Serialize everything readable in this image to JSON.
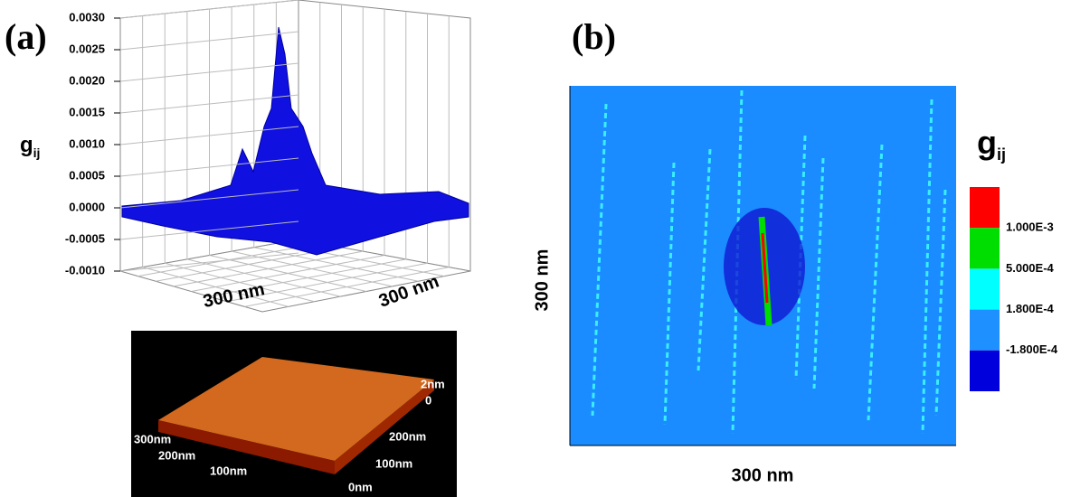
{
  "chart_data": [
    {
      "type": "surface",
      "label": "(a)",
      "zlabel": "g",
      "zlabel_sub": "ij",
      "zlim": [
        -0.001,
        0.003
      ],
      "zticks": [
        {
          "value": -0.001,
          "label": "-0.0010"
        },
        {
          "value": -0.0005,
          "label": "-0.0005"
        },
        {
          "value": 0,
          "label": "0.0000"
        },
        {
          "value": 0.0005,
          "label": "0.0005"
        },
        {
          "value": 0.001,
          "label": "0.0010"
        },
        {
          "value": 0.0015,
          "label": "0.0015"
        },
        {
          "value": 0.002,
          "label": "0.0020"
        },
        {
          "value": 0.0025,
          "label": "0.0025"
        },
        {
          "value": 0.003,
          "label": "0.0030"
        }
      ],
      "xlabel": "300 nm",
      "ylabel": "300 nm",
      "color": "#1010e0",
      "inset": {
        "x_labels": [
          "300nm",
          "200nm",
          "100nm"
        ],
        "y_labels": [
          "200nm",
          "100nm",
          "0nm"
        ],
        "z_labels": [
          "2nm",
          "0"
        ]
      }
    },
    {
      "type": "contour",
      "label": "(b)",
      "xlabel": "300 nm",
      "ylabel": "300 nm",
      "colorbar_title": "g",
      "colorbar_title_sub": "ij",
      "colors": [
        "#ff0000",
        "#00dd00",
        "#00ffff",
        "#1e90ff",
        "#0000dd"
      ],
      "levels": [
        {
          "value": 0.001,
          "label": "1.000E-3"
        },
        {
          "value": 0.0005,
          "label": "5.000E-4"
        },
        {
          "value": 0.00018,
          "label": "1.800E-4"
        },
        {
          "value": -0.00018,
          "label": "-1.800E-4"
        }
      ]
    }
  ]
}
